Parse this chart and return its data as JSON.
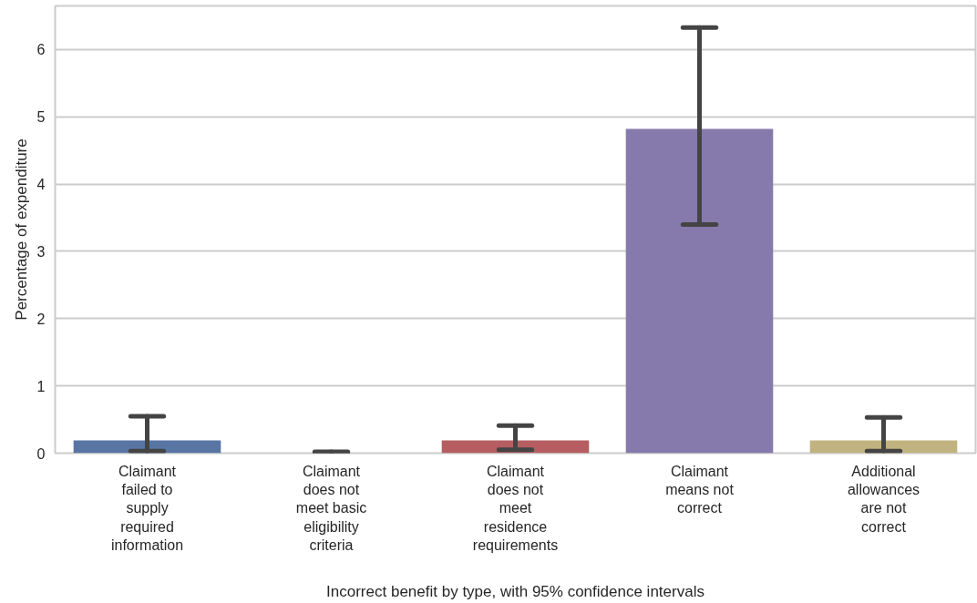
{
  "chart_data": {
    "type": "bar",
    "xlabel": "Incorrect benefit by type, with 95% confidence intervals",
    "ylabel": "Percentage of expenditure",
    "categories": [
      "Claimant failed to supply required information",
      "Claimant does not meet basic eligibility criteria",
      "Claimant does not meet residence requirements",
      "Claimant means not correct",
      "Additional allowances are not correct"
    ],
    "values": [
      0.19,
      0,
      0.19,
      4.82,
      0.19
    ],
    "colors": [
      "#5875a4",
      null,
      "#b55d60",
      "#857aab",
      "#c1b37f"
    ],
    "errors": [
      [
        0.03,
        0.55
      ],
      [
        0,
        0.02
      ],
      [
        0.05,
        0.41
      ],
      [
        3.4,
        6.33
      ],
      [
        0.03,
        0.53
      ]
    ],
    "ylim": [
      0,
      6.65
    ],
    "yticks": [
      0,
      1,
      2,
      3,
      4,
      5,
      6
    ],
    "grid": "y"
  }
}
